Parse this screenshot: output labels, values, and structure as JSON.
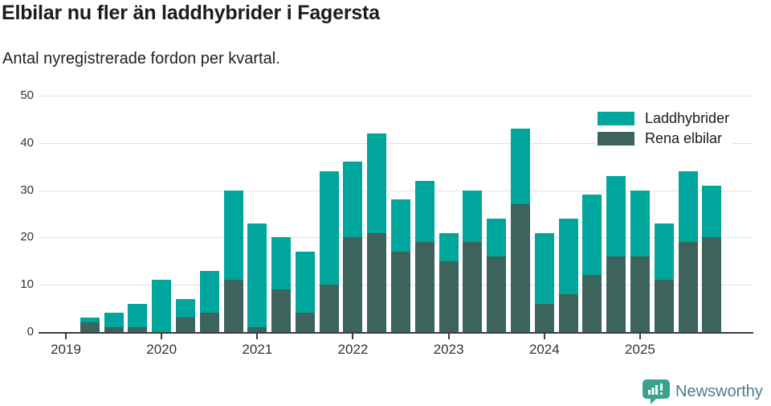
{
  "header": {
    "title": "Elbilar nu fler än laddhybrider i Fagersta",
    "subtitle": "Antal nyregistrerade fordon per kvartal."
  },
  "chart_data": {
    "type": "bar",
    "stacked": true,
    "title": "Elbilar nu fler än laddhybrider i Fagersta",
    "subtitle": "Antal nyregistrerade fordon per kvartal.",
    "categories": [
      "2019 Q1",
      "2019 Q2",
      "2019 Q3",
      "2019 Q4",
      "2020 Q1",
      "2020 Q2",
      "2020 Q3",
      "2020 Q4",
      "2021 Q1",
      "2021 Q2",
      "2021 Q3",
      "2021 Q4",
      "2022 Q1",
      "2022 Q2",
      "2022 Q3",
      "2022 Q4",
      "2023 Q1",
      "2023 Q2",
      "2023 Q3",
      "2023 Q4",
      "2024 Q1",
      "2024 Q2",
      "2024 Q3",
      "2024 Q4",
      "2025 Q1",
      "2025 Q2",
      "2025 Q3",
      "2025 Q4"
    ],
    "series": [
      {
        "name": "Laddhybrider",
        "color": "#00a69c",
        "values": [
          0,
          1,
          3,
          5,
          11,
          4,
          9,
          19,
          22,
          11,
          13,
          24,
          16,
          21,
          11,
          13,
          6,
          11,
          8,
          16,
          15,
          16,
          17,
          17,
          14,
          12,
          15,
          11
        ]
      },
      {
        "name": "Rena elbilar",
        "color": "#3c635c",
        "values": [
          0,
          2,
          1,
          1,
          0,
          3,
          4,
          11,
          1,
          9,
          4,
          10,
          20,
          21,
          17,
          19,
          15,
          19,
          16,
          27,
          6,
          8,
          12,
          16,
          16,
          11,
          19,
          20
        ]
      }
    ],
    "stack_order_bottom_to_top": [
      "Rena elbilar",
      "Laddhybrider"
    ],
    "totals": [
      0,
      3,
      4,
      6,
      11,
      7,
      13,
      30,
      23,
      20,
      17,
      34,
      36,
      42,
      28,
      32,
      21,
      30,
      24,
      43,
      21,
      24,
      29,
      33,
      30,
      23,
      34,
      31
    ],
    "ylim": [
      0,
      50
    ],
    "yticks": [
      0,
      10,
      20,
      30,
      40,
      50
    ],
    "year_ticks": [
      "2019",
      "2020",
      "2021",
      "2022",
      "2023",
      "2024",
      "2025"
    ],
    "grid": true,
    "legend_position": "top-right"
  },
  "footer": {
    "brand": "Newsworthy"
  },
  "colors": {
    "laddhybrider": "#00a69c",
    "rena_elbilar": "#3c635c",
    "axis": "#3d3d3d",
    "gridline": "#e1e1e1",
    "brand_icon": "#3aa28d",
    "brand_text": "#4d7e8c"
  }
}
